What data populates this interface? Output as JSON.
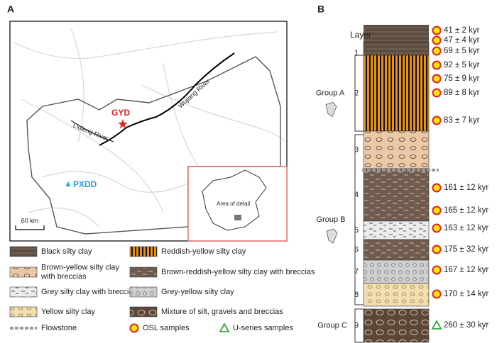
{
  "panel_a": {
    "label": "A",
    "map": {
      "sites": [
        "GYD",
        "PXDD"
      ],
      "rivers": [
        "Liuleng River",
        "Wujiang River"
      ],
      "scale_bar": "60 km",
      "inset_label": "Area of detail"
    }
  },
  "legend": {
    "items": [
      {
        "lines": [
          "Black silty clay"
        ]
      },
      {
        "lines": [
          "Reddish-yellow silty clay"
        ]
      },
      {
        "lines": [
          "Brown-yellow silty clay",
          "with breccias"
        ]
      },
      {
        "lines": [
          "Brown-reddish-yellow silty clay with breccias"
        ]
      },
      {
        "lines": [
          "Grey silty clay with breccias"
        ]
      },
      {
        "lines": [
          "Grey-yellow silty clay"
        ]
      },
      {
        "lines": [
          "Yellow silty clay"
        ]
      },
      {
        "lines": [
          "Mixture of silt, gravels and breccias"
        ]
      },
      {
        "lines": [
          "Flowstone"
        ]
      },
      {
        "lines": [
          "OSL samples"
        ]
      },
      {
        "lines": [
          "U-series samples"
        ]
      }
    ]
  },
  "panel_b": {
    "label": "B",
    "column_title": "Layer",
    "layers": [
      "1",
      "2",
      "3",
      "4",
      "5",
      "6",
      "7",
      "8",
      "9"
    ],
    "groups": [
      "Group A",
      "Group B",
      "Group C"
    ],
    "osl_ages": [
      "41 ± 2 kyr",
      "47 ± 4 kyr",
      "69 ± 5 kyr",
      "92 ± 5 kyr",
      "75 ± 9 kyr",
      "89 ± 8 kyr",
      "83 ± 7 kyr",
      "161 ± 12 kyr",
      "165 ± 12 kyr",
      "163 ± 12 kyr",
      "175 ± 32 kyr",
      "167 ± 12 kyr",
      "170 ± 14 kyr"
    ],
    "u_series_ages": [
      "260 ± 30 kyr"
    ]
  }
}
